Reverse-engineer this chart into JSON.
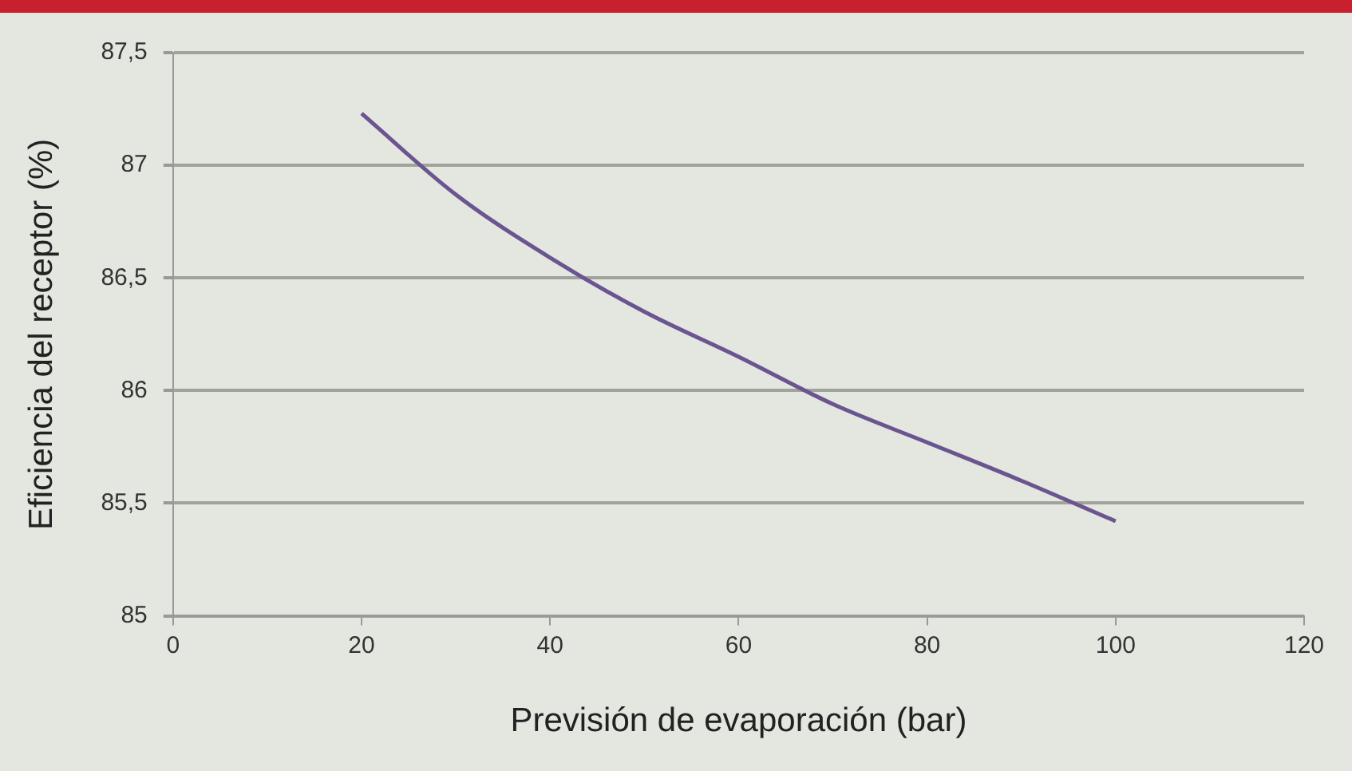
{
  "chart_data": {
    "type": "line",
    "xlabel": "Previsión de evaporación (bar)",
    "ylabel": "Eficiencia del receptor (%)",
    "x": [
      20,
      30,
      40,
      50,
      60,
      70,
      80,
      90,
      100
    ],
    "series": [
      {
        "color": "#6a5590",
        "values": [
          87.23,
          86.87,
          86.59,
          86.35,
          86.15,
          85.94,
          85.77,
          85.6,
          85.42
        ]
      }
    ],
    "xlim": [
      0,
      120
    ],
    "xticks": [
      0,
      20,
      40,
      60,
      80,
      100,
      120
    ],
    "ylim": [
      85,
      87.5
    ],
    "yticks": [
      {
        "value": 85,
        "label": "85"
      },
      {
        "value": 85.5,
        "label": "85,5"
      },
      {
        "value": 86,
        "label": "86"
      },
      {
        "value": 86.5,
        "label": "86,5"
      },
      {
        "value": 87,
        "label": "87"
      },
      {
        "value": 87.5,
        "label": "87,5"
      }
    ],
    "grid": "y",
    "legend": false,
    "marker": "none",
    "line_style": "solid"
  }
}
